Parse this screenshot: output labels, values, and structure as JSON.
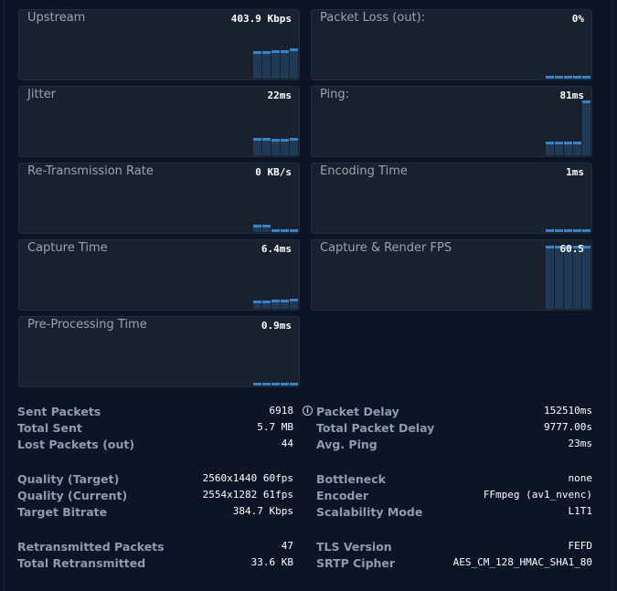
{
  "cards": [
    {
      "id": "upstream",
      "label": "Upstream",
      "value": "403.9 Kbps"
    },
    {
      "id": "packet-loss-out",
      "label": "Packet Loss (out):",
      "value": "0%"
    },
    {
      "id": "jitter",
      "label": "Jitter",
      "value": "22ms"
    },
    {
      "id": "ping",
      "label": "Ping:",
      "value": "81ms"
    },
    {
      "id": "retransmission-rate",
      "label": "Re-Transmission Rate",
      "value": "0 KB/s"
    },
    {
      "id": "encoding-time",
      "label": "Encoding Time",
      "value": "1ms"
    },
    {
      "id": "capture-time",
      "label": "Capture Time",
      "value": "6.4ms"
    },
    {
      "id": "capture-render-fps",
      "label": "Capture & Render FPS",
      "value": "60.5"
    },
    {
      "id": "pre-processing-time",
      "label": "Pre-Processing Time",
      "value": "0.9ms"
    }
  ],
  "stats_left": [
    [
      {
        "label": "Sent Packets",
        "value": "6918"
      },
      {
        "label": "Total Sent",
        "value": "5.7 MB"
      },
      {
        "label": "Lost Packets (out)",
        "value": "44"
      }
    ],
    [
      {
        "label": "Quality (Target)",
        "value": "2560x1440 60fps"
      },
      {
        "label": "Quality (Current)",
        "value": "2554x1282 61fps"
      },
      {
        "label": "Target Bitrate",
        "value": "384.7 Kbps"
      }
    ],
    [
      {
        "label": "Retransmitted Packets",
        "value": "47"
      },
      {
        "label": "Total Retransmitted",
        "value": "33.6 KB"
      }
    ]
  ],
  "stats_right": [
    [
      {
        "label": "Packet Delay",
        "value": "152510ms"
      },
      {
        "label": "Total Packet Delay",
        "value": "9777.00s"
      },
      {
        "label": "Avg. Ping",
        "value": "23ms"
      }
    ],
    [
      {
        "label": "Bottleneck",
        "value": "none"
      },
      {
        "label": "Encoder",
        "value": "FFmpeg (av1_nvenc)"
      },
      {
        "label": "Scalability Mode",
        "value": "L1T1"
      }
    ],
    [
      {
        "label": "TLS Version",
        "value": "FEFD"
      },
      {
        "label": "SRTP Cipher",
        "value": "AES_CM_128_HMAC_SHA1_80"
      }
    ]
  ],
  "info_icon": "info-icon",
  "colors": {
    "background": "#0c1426",
    "card": "#19212f",
    "bar_fill": "#1e3a57",
    "bar_top": "#2f86cf",
    "label": "#8e9bb0",
    "value": "#ffffff"
  }
}
